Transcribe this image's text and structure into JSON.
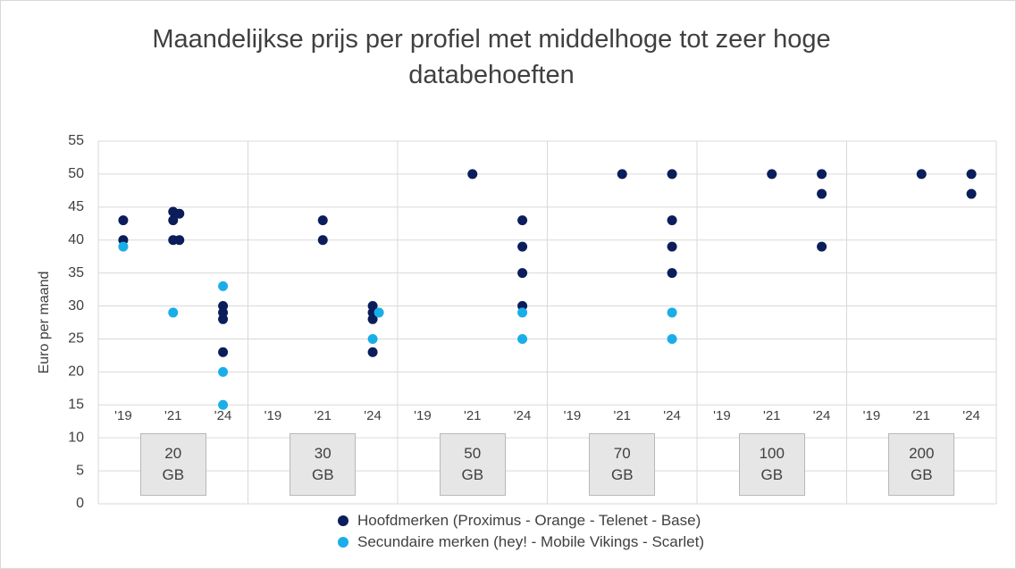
{
  "chart_data": {
    "type": "scatter",
    "title": "Maandelijkse prijs per profiel met middelhoge tot zeer hoge databehoeften",
    "y_label": "Euro per maand",
    "categories": [
      "20 GB",
      "30 GB",
      "50 GB",
      "70 GB",
      "100 GB",
      "200 GB"
    ],
    "subcategories": [
      "'19",
      "'21",
      "'24"
    ],
    "ylim": [
      0,
      55
    ],
    "yticks": [
      0,
      5,
      10,
      15,
      20,
      25,
      30,
      35,
      40,
      45,
      50,
      55
    ],
    "grid": true,
    "legend": "bottom",
    "series": [
      {
        "name": "Hoofdmerken (Proximus - Orange - Telenet - Base)",
        "color": "#0b1d5a",
        "values": [
          [
            [
              43,
              40
            ],
            [
              44.3,
              43,
              44,
              40,
              40
            ],
            [
              29,
              30,
              28,
              23
            ]
          ],
          [
            [],
            [
              43,
              40
            ],
            [
              29,
              30,
              28,
              23
            ]
          ],
          [
            [],
            [
              50
            ],
            [
              43,
              39,
              35,
              30
            ]
          ],
          [
            [],
            [
              50
            ],
            [
              50,
              43,
              39,
              35
            ]
          ],
          [
            [],
            [
              50
            ],
            [
              50,
              47,
              39
            ]
          ],
          [
            [],
            [
              50
            ],
            [
              50,
              47
            ]
          ]
        ]
      },
      {
        "name": "Secundaire merken (hey! - Mobile Vikings - Scarlet)",
        "color": "#1aaee8",
        "values": [
          [
            [
              39
            ],
            [
              29
            ],
            [
              33,
              20,
              15
            ]
          ],
          [
            [],
            [],
            [
              29,
              25
            ]
          ],
          [
            [],
            [],
            [
              29,
              25
            ]
          ],
          [
            [],
            [],
            [
              29,
              25
            ]
          ],
          [
            [],
            [],
            []
          ],
          [
            [],
            [],
            []
          ]
        ]
      }
    ]
  }
}
